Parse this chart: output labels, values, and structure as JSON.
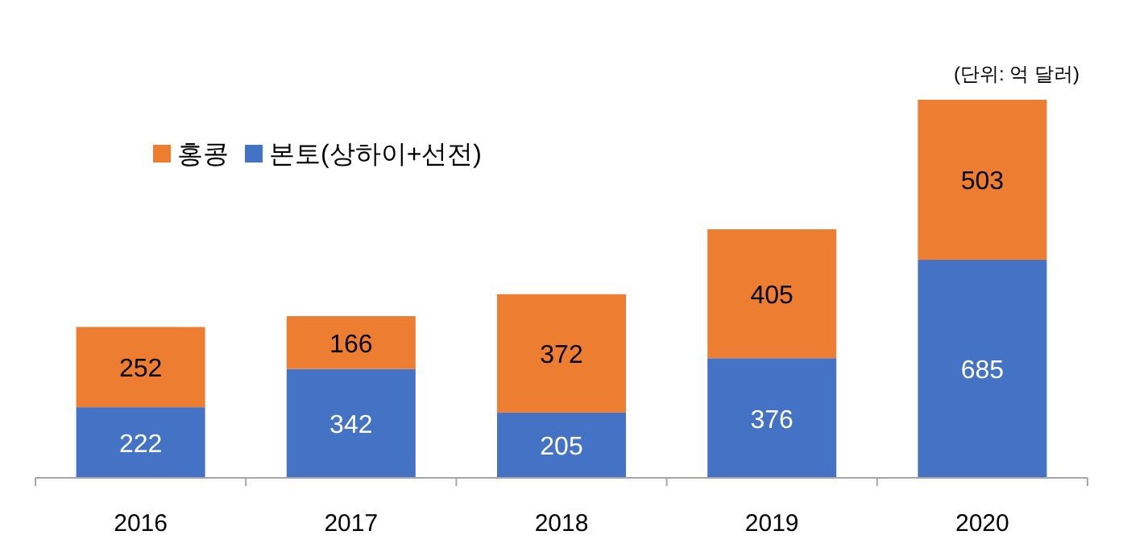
{
  "chart_data": {
    "type": "bar",
    "stacked": true,
    "categories": [
      "2016",
      "2017",
      "2018",
      "2019",
      "2020"
    ],
    "series": [
      {
        "name": "본토(상하이+선전)",
        "color": "#4472c4",
        "values": [
          222,
          342,
          205,
          376,
          685
        ]
      },
      {
        "name": "홍콩",
        "color": "#ed7d31",
        "values": [
          252,
          166,
          372,
          405,
          503
        ]
      }
    ],
    "data_labels": true,
    "legend": "top left",
    "annotations": [
      "(단위: 억 달러)"
    ]
  }
}
